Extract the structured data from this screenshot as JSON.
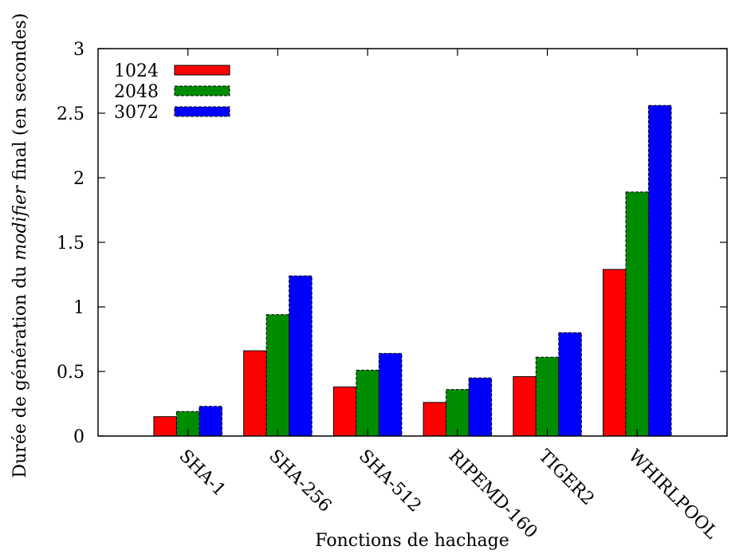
{
  "chart_data": {
    "type": "bar",
    "xlabel": "Fonctions de hachage",
    "ylabel": {
      "before": "Durée de génération du ",
      "italic": "modifier",
      "after": " final (en secondes)"
    },
    "categories": [
      "SHA-1",
      "SHA-256",
      "SHA-512",
      "RIPEMD-160",
      "TIGER2",
      "WHIRLPOOL"
    ],
    "series": [
      {
        "name": "1024",
        "color": "#ff0000",
        "values": [
          0.15,
          0.66,
          0.38,
          0.26,
          0.46,
          1.29
        ]
      },
      {
        "name": "2048",
        "color": "#008c00",
        "values": [
          0.19,
          0.94,
          0.51,
          0.36,
          0.61,
          1.89
        ]
      },
      {
        "name": "3072",
        "color": "#0000ff",
        "values": [
          0.23,
          1.24,
          0.64,
          0.45,
          0.8,
          2.56
        ]
      }
    ],
    "ylim": [
      0,
      3
    ],
    "yticks": [
      "0",
      "0.5",
      "1",
      "1.5",
      "2",
      "2.5",
      "3"
    ],
    "grid": false,
    "legend_position": "top-left"
  }
}
